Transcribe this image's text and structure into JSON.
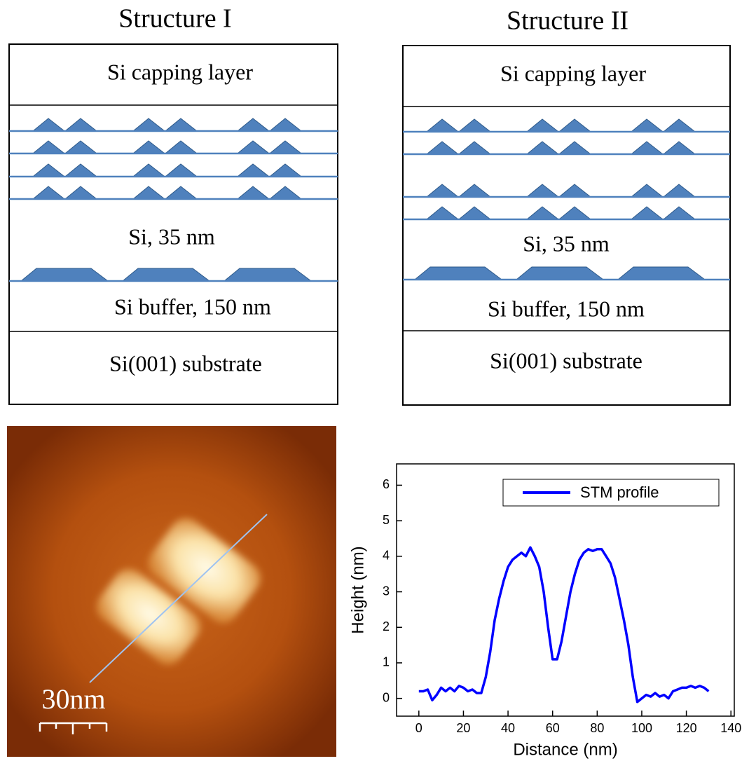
{
  "structure_1": {
    "title": "Structure I",
    "layers": [
      "Si capping layer",
      "Si, 35 nm",
      "Si buffer, 150 nm",
      "Si(001) substrate"
    ]
  },
  "structure_2": {
    "title": "Structure II",
    "layers": [
      "Si capping layer",
      "Si, 35 nm",
      "Si buffer, 150 nm",
      "Si(001) substrate"
    ]
  },
  "stm_image": {
    "scale_label": "30nm"
  },
  "chart_data": {
    "type": "line",
    "xlabel": "Distance (nm)",
    "ylabel": "Height (nm)",
    "x": [
      0,
      2,
      4,
      6,
      8,
      10,
      12,
      14,
      16,
      18,
      20,
      22,
      24,
      26,
      28,
      30,
      32,
      34,
      36,
      38,
      40,
      42,
      44,
      46,
      48,
      50,
      52,
      54,
      56,
      58,
      60,
      62,
      64,
      66,
      68,
      70,
      72,
      74,
      76,
      78,
      80,
      82,
      84,
      86,
      88,
      90,
      92,
      94,
      96,
      98,
      100,
      102,
      104,
      106,
      108,
      110,
      112,
      114,
      116,
      118,
      120,
      122,
      124,
      126,
      128,
      130
    ],
    "series": [
      {
        "name": "STM profile",
        "color": "#0000ff",
        "values": [
          0.2,
          0.2,
          0.25,
          -0.05,
          0.1,
          0.3,
          0.2,
          0.3,
          0.2,
          0.35,
          0.3,
          0.2,
          0.25,
          0.15,
          0.15,
          0.6,
          1.3,
          2.2,
          2.8,
          3.3,
          3.7,
          3.9,
          4.0,
          4.1,
          4.0,
          4.25,
          4.0,
          3.7,
          3.0,
          2.0,
          1.1,
          1.1,
          1.6,
          2.3,
          3.0,
          3.5,
          3.9,
          4.1,
          4.2,
          4.15,
          4.2,
          4.2,
          4.0,
          3.8,
          3.4,
          2.8,
          2.2,
          1.5,
          0.6,
          -0.1,
          0.0,
          0.1,
          0.05,
          0.15,
          0.05,
          0.1,
          0.0,
          0.2,
          0.25,
          0.3,
          0.3,
          0.35,
          0.3,
          0.35,
          0.3,
          0.2
        ]
      }
    ],
    "xlim": [
      -10,
      141.5
    ],
    "xticks": [
      0,
      20,
      40,
      60,
      80,
      100,
      120,
      140
    ],
    "ylim": [
      -0.5,
      6.6
    ],
    "yticks": [
      0,
      1,
      2,
      3,
      4,
      5,
      6
    ],
    "legend": "upper right"
  }
}
